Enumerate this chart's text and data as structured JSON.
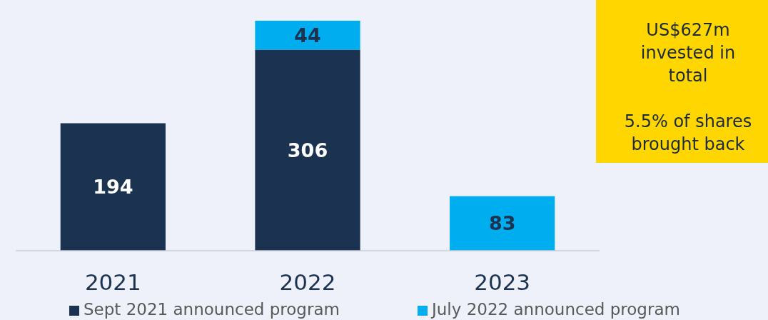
{
  "chart_data": {
    "type": "bar",
    "stacked": true,
    "categories": [
      "2021",
      "2022",
      "2023"
    ],
    "series": [
      {
        "name": "Sept 2021 announced program",
        "color": "#1b3350",
        "values": [
          194,
          306,
          null
        ]
      },
      {
        "name": "July 2022 announced program",
        "color": "#00aeef",
        "values": [
          null,
          44,
          83
        ]
      }
    ],
    "data_labels": true,
    "legend": "bottom",
    "annotations": [
      "US$627m invested in total",
      "5.5% of shares brought back"
    ]
  }
}
